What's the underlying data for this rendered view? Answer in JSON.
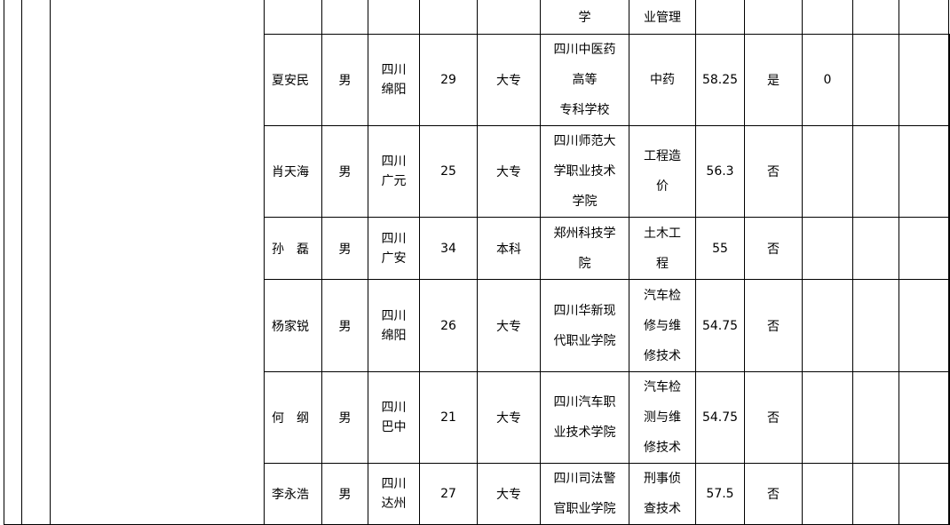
{
  "top_row": {
    "school": "学",
    "major": "业管理"
  },
  "rows": [
    {
      "name": "夏安民",
      "gender": "男",
      "origin": "四川\n绵阳",
      "age": "29",
      "education": "大专",
      "school": "四川中医药\n高等\n专科学校",
      "major": "中药",
      "score": "58.25",
      "flag": "是",
      "extra": "0"
    },
    {
      "name": "肖天海",
      "gender": "男",
      "origin": "四川\n广元",
      "age": "25",
      "education": "大专",
      "school": "四川师范大\n学职业技术\n学院",
      "major": "工程造\n价",
      "score": "56.3",
      "flag": "否",
      "extra": ""
    },
    {
      "name": "孙　磊",
      "gender": "男",
      "origin": "四川\n广安",
      "age": "34",
      "education": "本科",
      "school": "郑州科技学\n院",
      "major": "土木工\n程",
      "score": "55",
      "flag": "否",
      "extra": ""
    },
    {
      "name": "杨家锐",
      "gender": "男",
      "origin": "四川\n绵阳",
      "age": "26",
      "education": "大专",
      "school": "四川华新现\n代职业学院",
      "major": "汽车检\n修与维\n修技术",
      "score": "54.75",
      "flag": "否",
      "extra": ""
    },
    {
      "name": "何　纲",
      "gender": "男",
      "origin": "四川\n巴中",
      "age": "21",
      "education": "大专",
      "school": "四川汽车职\n业技术学院",
      "major": "汽车检\n测与维\n修技术",
      "score": "54.75",
      "flag": "否",
      "extra": ""
    },
    {
      "name": "李永浩",
      "gender": "男",
      "origin": "四川\n达州",
      "age": "27",
      "education": "大专",
      "school": "四川司法警\n官职业学院",
      "major": "刑事侦\n查技术",
      "score": "57.5",
      "flag": "否",
      "extra": ""
    }
  ]
}
